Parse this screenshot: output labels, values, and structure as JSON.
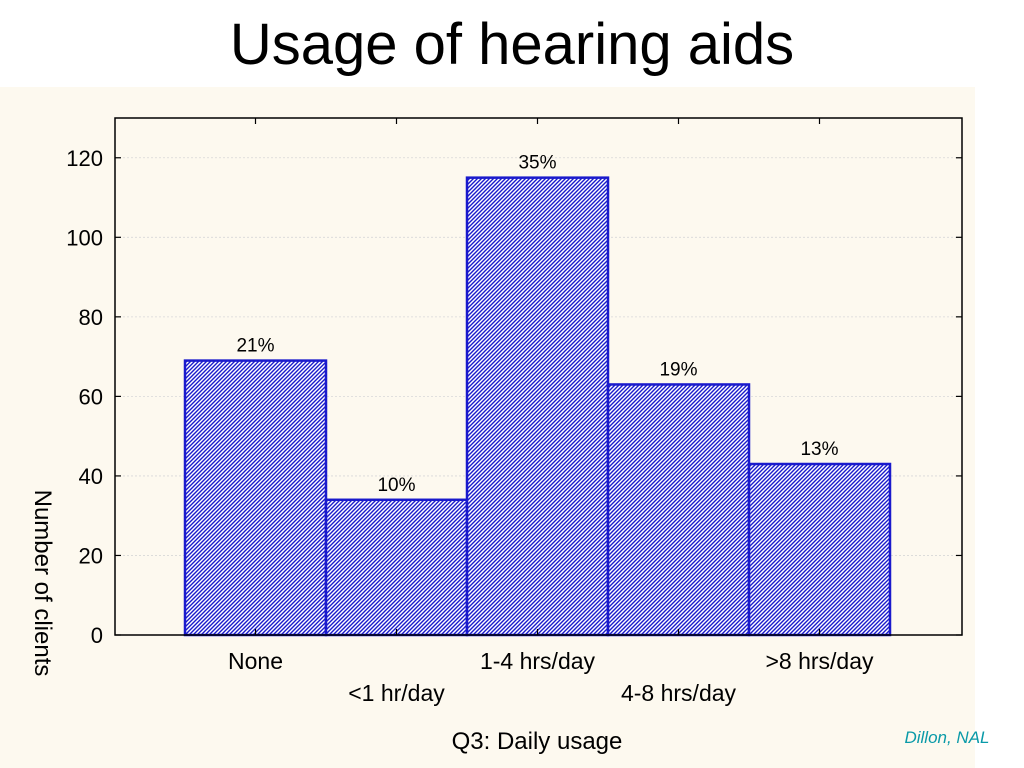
{
  "slide": {
    "title": "Usage of hearing aids",
    "credit": "Dillon, NAL",
    "panel_color": "#fdf9ef",
    "credit_color": "#0a9aa8"
  },
  "chart_data": {
    "type": "bar",
    "title": "Usage of hearing aids",
    "xlabel": "Q3: Daily usage",
    "ylabel": "Number of clients",
    "categories": [
      "None",
      "<1 hr/day",
      "1-4 hrs/day",
      "4-8 hrs/day",
      ">8 hrs/day"
    ],
    "values": [
      69,
      34,
      115,
      63,
      43
    ],
    "data_labels": [
      "21%",
      "10%",
      "35%",
      "19%",
      "13%"
    ],
    "ylim": [
      0,
      130
    ],
    "yticks": [
      0,
      20,
      40,
      60,
      80,
      100,
      120
    ],
    "grid": true,
    "bar_style": "hatched",
    "bar_color": "#1a1acc"
  }
}
